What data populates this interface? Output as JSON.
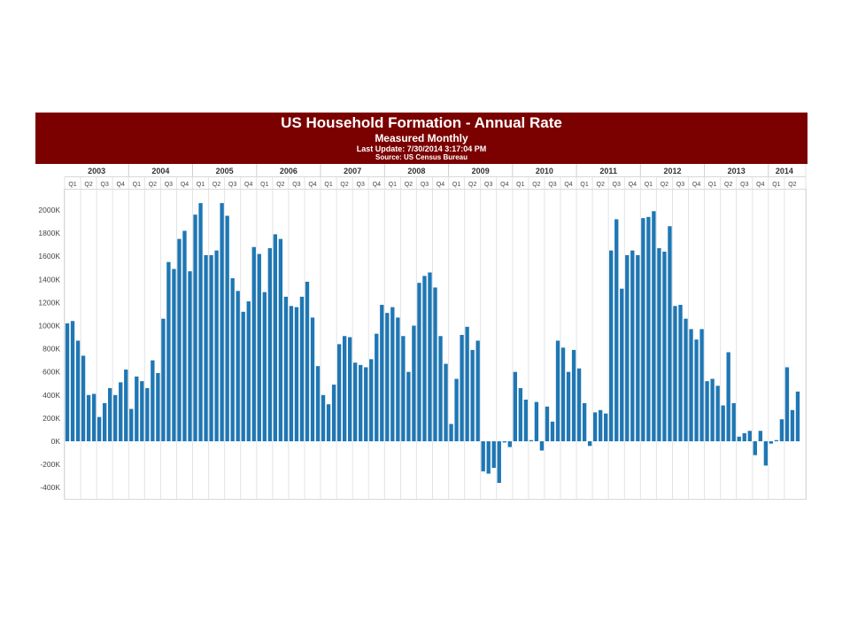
{
  "chart_data": {
    "type": "bar",
    "title": "US Household Formation - Annual Rate",
    "subtitle": "Measured Monthly",
    "update_note": "Last Update: 7/30/2014 3:17:04 PM",
    "source_note": "Source: US Census Bureau",
    "bar_color": "#1f77b4",
    "banner_color": "#7b0000",
    "years": [
      "2003",
      "2004",
      "2005",
      "2006",
      "2007",
      "2008",
      "2009",
      "2010",
      "2011",
      "2012",
      "2013",
      "2014"
    ],
    "quarters": [
      "Q1",
      "Q2",
      "Q3",
      "Q4"
    ],
    "y_ticks": [
      "2000K",
      "1800K",
      "1600K",
      "1400K",
      "1200K",
      "1000K",
      "800K",
      "600K",
      "400K",
      "200K",
      "0K",
      "-200K",
      "-400K"
    ],
    "ylim": [
      -500,
      2150
    ],
    "y_unit": "thousands",
    "grid": "vertical quarter lines",
    "start": "2003-01",
    "values": [
      1020,
      1040,
      870,
      740,
      400,
      410,
      210,
      330,
      460,
      400,
      510,
      620,
      280,
      560,
      520,
      460,
      700,
      590,
      1060,
      1550,
      1490,
      1750,
      1820,
      1470,
      1960,
      2060,
      1610,
      1610,
      1650,
      2060,
      1950,
      1410,
      1300,
      1120,
      1210,
      1680,
      1620,
      1290,
      1670,
      1790,
      1750,
      1250,
      1170,
      1160,
      1250,
      1380,
      1070,
      650,
      400,
      320,
      490,
      840,
      910,
      900,
      680,
      660,
      640,
      710,
      930,
      1180,
      1110,
      1160,
      1070,
      910,
      600,
      1000,
      1370,
      1430,
      1460,
      1330,
      910,
      670,
      150,
      540,
      920,
      990,
      790,
      870,
      -260,
      -280,
      -230,
      -360,
      -10,
      -50,
      600,
      460,
      360,
      10,
      340,
      -80,
      300,
      170,
      870,
      810,
      600,
      790,
      630,
      330,
      -40,
      250,
      270,
      240,
      1650,
      1920,
      1320,
      1610,
      1650,
      1610,
      1930,
      1940,
      1990,
      1670,
      1640,
      1860,
      1170,
      1180,
      1060,
      970,
      880,
      970,
      520,
      540,
      480,
      310,
      770,
      330,
      40,
      70,
      90,
      -120,
      90,
      -210,
      -20,
      10,
      190,
      640,
      270,
      430
    ]
  }
}
